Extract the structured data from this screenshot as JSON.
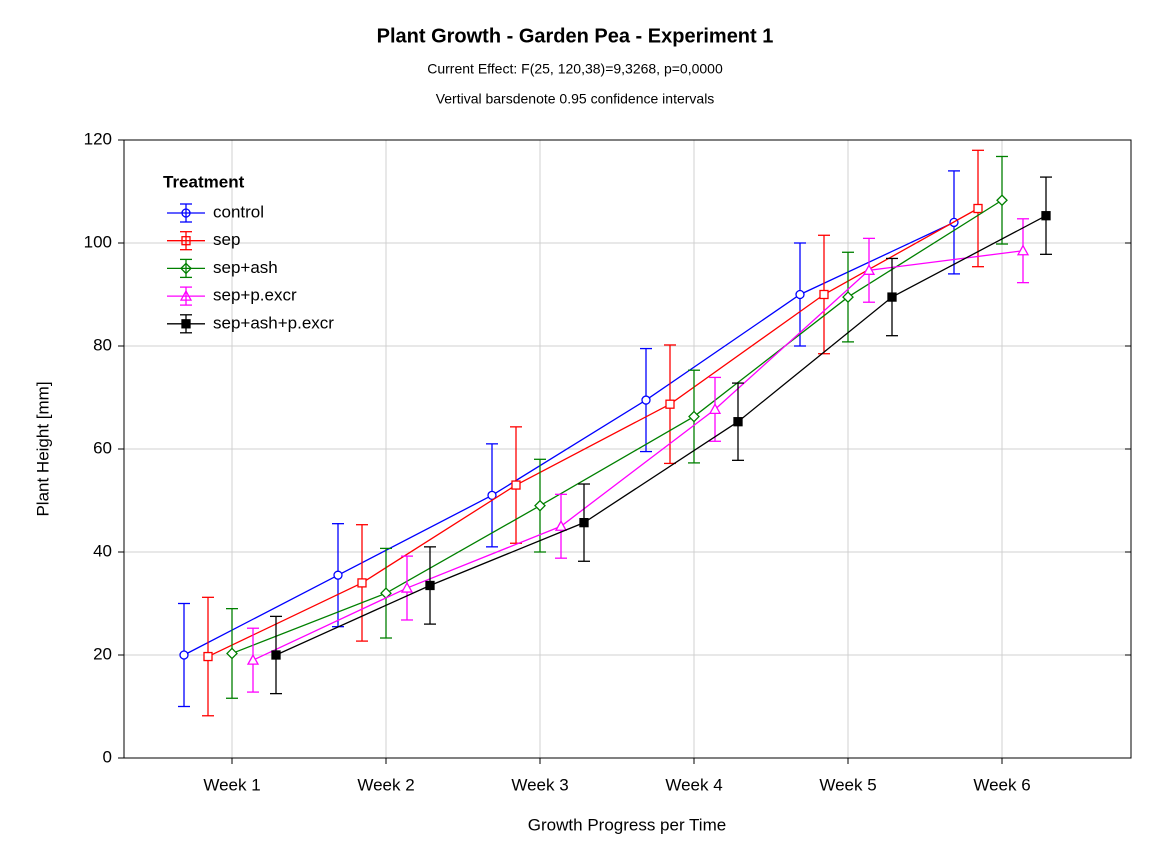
{
  "chart_data": {
    "type": "line",
    "title": "Plant Growth - Garden Pea - Experiment 1",
    "subtitle": [
      "Current Effect: F(25, 120,38)=9,3268, p=0,0000",
      "Vertival barsdenote 0.95 confidence intervals"
    ],
    "x_label": "Growth Progress per Time",
    "y_label": "Plant Height [mm]",
    "legend_title": "Treatment",
    "legend": "upper left",
    "grid": true,
    "categories": [
      "Week 1",
      "Week 2",
      "Week 3",
      "Week 4",
      "Week 5",
      "Week 6"
    ],
    "ylim": [
      0,
      120
    ],
    "yticks": [
      0,
      20,
      40,
      60,
      80,
      100,
      120
    ],
    "series": [
      {
        "name": "control",
        "color": "#0000ff",
        "marker": "circle",
        "values": [
          20,
          35.5,
          51,
          69.5,
          90,
          104
        ],
        "errors": [
          10,
          10,
          10,
          10,
          10,
          10
        ]
      },
      {
        "name": "sep",
        "color": "#ff0000",
        "marker": "square",
        "values": [
          19.7,
          34,
          53,
          68.7,
          90,
          106.7
        ],
        "errors": [
          11.5,
          11.3,
          11.3,
          11.5,
          11.5,
          11.3
        ]
      },
      {
        "name": "sep+ash",
        "color": "#008000",
        "marker": "diamond",
        "values": [
          20.3,
          32,
          49,
          66.3,
          89.5,
          108.3
        ],
        "errors": [
          8.7,
          8.7,
          9,
          9,
          8.7,
          8.5
        ]
      },
      {
        "name": "sep+p.excr",
        "color": "#ff00ff",
        "marker": "triangle",
        "values": [
          19,
          33,
          45,
          67.7,
          94.7,
          98.5
        ],
        "errors": [
          6.2,
          6.2,
          6.2,
          6.2,
          6.2,
          6.2
        ]
      },
      {
        "name": "sep+ash+p.excr",
        "color": "#000000",
        "marker": "filled-square",
        "values": [
          20,
          33.5,
          45.7,
          65.3,
          89.5,
          105.3
        ],
        "errors": [
          7.5,
          7.5,
          7.5,
          7.5,
          7.5,
          7.5
        ]
      }
    ]
  }
}
